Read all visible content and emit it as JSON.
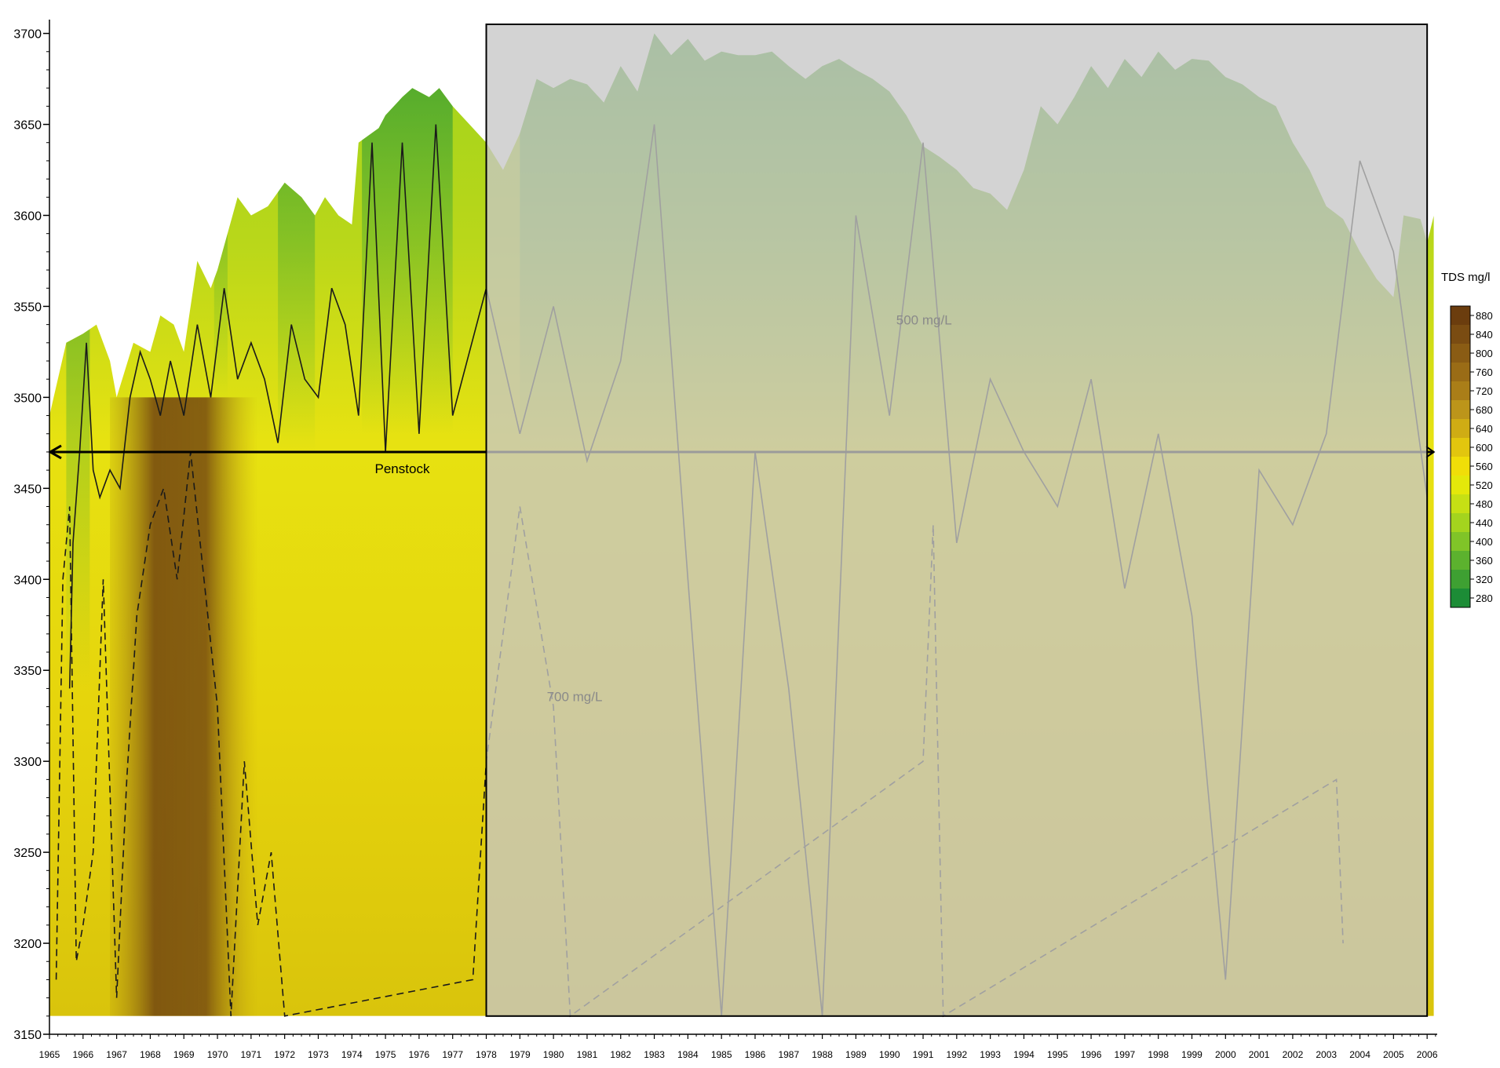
{
  "chart_data": {
    "type": "heatmap",
    "title": "",
    "xlabel": "",
    "ylabel": "",
    "xlim": [
      1965,
      2006.3
    ],
    "ylim": [
      3150,
      3705
    ],
    "x_ticks": [
      "1965",
      "1966",
      "1967",
      "1968",
      "1969",
      "1970",
      "1971",
      "1972",
      "1973",
      "1974",
      "1975",
      "1976",
      "1977",
      "1978",
      "1979",
      "1980",
      "1981",
      "1982",
      "1983",
      "1984",
      "1985",
      "1986",
      "1987",
      "1988",
      "1989",
      "1990",
      "1991",
      "1992",
      "1993",
      "1994",
      "1995",
      "1996",
      "1997",
      "1998",
      "1999",
      "2000",
      "2001",
      "2002",
      "2003",
      "2004",
      "2005",
      "2006"
    ],
    "y_ticks": [
      3150,
      3200,
      3250,
      3300,
      3350,
      3400,
      3450,
      3500,
      3550,
      3600,
      3650,
      3700
    ],
    "legend": {
      "title": "TDS mg/l",
      "placement": "right",
      "levels": [
        880,
        840,
        800,
        760,
        720,
        680,
        640,
        600,
        560,
        520,
        480,
        440,
        400,
        360,
        320,
        280
      ],
      "colors": [
        "#6b3d0e",
        "#7a4c12",
        "#8a5c14",
        "#9a6c16",
        "#aa7e18",
        "#bc951a",
        "#cfac14",
        "#e2c60e",
        "#f0de08",
        "#e4e80a",
        "#c6e014",
        "#a4d41e",
        "#80c428",
        "#5cb22e",
        "#3ea032",
        "#1c8c36"
      ]
    },
    "surface_top": [
      [
        1965,
        3490
      ],
      [
        1965.5,
        3530
      ],
      [
        1966,
        3535
      ],
      [
        1966.4,
        3540
      ],
      [
        1966.8,
        3520
      ],
      [
        1967,
        3500
      ],
      [
        1967.5,
        3530
      ],
      [
        1968,
        3525
      ],
      [
        1968.3,
        3545
      ],
      [
        1968.7,
        3540
      ],
      [
        1969,
        3525
      ],
      [
        1969.4,
        3575
      ],
      [
        1969.8,
        3560
      ],
      [
        1970,
        3570
      ],
      [
        1970.6,
        3610
      ],
      [
        1971,
        3600
      ],
      [
        1971.5,
        3605
      ],
      [
        1972,
        3618
      ],
      [
        1972.5,
        3610
      ],
      [
        1972.9,
        3600
      ],
      [
        1973.2,
        3610
      ],
      [
        1973.6,
        3600
      ],
      [
        1974,
        3595
      ],
      [
        1974.2,
        3640
      ],
      [
        1974.8,
        3648
      ],
      [
        1975,
        3655
      ],
      [
        1975.5,
        3665
      ],
      [
        1975.8,
        3670
      ],
      [
        1976.3,
        3665
      ],
      [
        1976.6,
        3670
      ],
      [
        1977,
        3660
      ],
      [
        1977.5,
        3650
      ],
      [
        1978,
        3640
      ],
      [
        1978.5,
        3625
      ],
      [
        1979,
        3645
      ],
      [
        1979.5,
        3675
      ],
      [
        1980,
        3670
      ],
      [
        1980.5,
        3675
      ],
      [
        1981,
        3672
      ],
      [
        1981.5,
        3662
      ],
      [
        1982,
        3682
      ],
      [
        1982.5,
        3668
      ],
      [
        1983,
        3700
      ],
      [
        1983.5,
        3688
      ],
      [
        1984,
        3697
      ],
      [
        1984.5,
        3685
      ],
      [
        1985,
        3690
      ],
      [
        1985.5,
        3688
      ],
      [
        1986,
        3688
      ],
      [
        1986.5,
        3690
      ],
      [
        1987,
        3682
      ],
      [
        1987.5,
        3675
      ],
      [
        1988,
        3682
      ],
      [
        1988.5,
        3686
      ],
      [
        1989,
        3680
      ],
      [
        1989.5,
        3675
      ],
      [
        1990,
        3668
      ],
      [
        1990.5,
        3655
      ],
      [
        1991,
        3638
      ],
      [
        1991.5,
        3632
      ],
      [
        1992,
        3625
      ],
      [
        1992.5,
        3615
      ],
      [
        1993,
        3612
      ],
      [
        1993.5,
        3603
      ],
      [
        1994,
        3625
      ],
      [
        1994.5,
        3660
      ],
      [
        1995,
        3650
      ],
      [
        1995.5,
        3665
      ],
      [
        1996,
        3682
      ],
      [
        1996.5,
        3670
      ],
      [
        1997,
        3686
      ],
      [
        1997.5,
        3676
      ],
      [
        1998,
        3690
      ],
      [
        1998.5,
        3680
      ],
      [
        1999,
        3686
      ],
      [
        1999.5,
        3685
      ],
      [
        2000,
        3676
      ],
      [
        2000.5,
        3672
      ],
      [
        2001,
        3665
      ],
      [
        2001.5,
        3660
      ],
      [
        2002,
        3640
      ],
      [
        2002.5,
        3625
      ],
      [
        2003,
        3605
      ],
      [
        2003.5,
        3598
      ],
      [
        2004,
        3580
      ],
      [
        2004.5,
        3565
      ],
      [
        2005,
        3555
      ],
      [
        2005.3,
        3600
      ],
      [
        2005.8,
        3598
      ],
      [
        2006,
        3585
      ],
      [
        2006.2,
        3600
      ]
    ],
    "penstock_elevation": 3470,
    "surface_bottom": 3160,
    "highlight_region": {
      "x": [
        1978,
        2006
      ],
      "y": [
        3160,
        3705
      ]
    },
    "annotations": [
      {
        "text": "Penstock",
        "x": 1975.5,
        "y": 3461
      },
      {
        "text": "500 mg/L",
        "x": 1990.2,
        "y": 3540
      },
      {
        "text": "700 mg/L",
        "x": 1979.8,
        "y": 3333
      }
    ],
    "contours": [
      {
        "level": "500 mg/L",
        "style": "solid",
        "points": [
          [
            1965.6,
            3340
          ],
          [
            1965.7,
            3420
          ],
          [
            1965.9,
            3470
          ],
          [
            1966.1,
            3530
          ],
          [
            1966.3,
            3460
          ],
          [
            1966.5,
            3445
          ],
          [
            1966.8,
            3460
          ],
          [
            1967.1,
            3450
          ],
          [
            1967.4,
            3500
          ],
          [
            1967.7,
            3525
          ],
          [
            1968,
            3510
          ],
          [
            1968.3,
            3490
          ],
          [
            1968.6,
            3520
          ],
          [
            1969,
            3490
          ],
          [
            1969.4,
            3540
          ],
          [
            1969.8,
            3500
          ],
          [
            1970.2,
            3560
          ],
          [
            1970.6,
            3510
          ],
          [
            1971,
            3530
          ],
          [
            1971.4,
            3510
          ],
          [
            1971.8,
            3475
          ],
          [
            1972.2,
            3540
          ],
          [
            1972.6,
            3510
          ],
          [
            1973,
            3500
          ],
          [
            1973.4,
            3560
          ],
          [
            1973.8,
            3540
          ],
          [
            1974.2,
            3490
          ],
          [
            1974.6,
            3640
          ],
          [
            1975,
            3470
          ],
          [
            1975.5,
            3640
          ],
          [
            1976,
            3480
          ],
          [
            1976.5,
            3650
          ],
          [
            1977,
            3490
          ],
          [
            1978,
            3560
          ],
          [
            1979,
            3480
          ],
          [
            1980,
            3550
          ],
          [
            1981,
            3465
          ],
          [
            1982,
            3520
          ],
          [
            1983,
            3650
          ],
          [
            1984,
            3400
          ],
          [
            1985,
            3160
          ],
          [
            1986,
            3470
          ],
          [
            1987,
            3340
          ],
          [
            1988,
            3160
          ],
          [
            1989,
            3600
          ],
          [
            1990,
            3490
          ],
          [
            1991,
            3640
          ],
          [
            1992,
            3420
          ],
          [
            1993,
            3510
          ],
          [
            1994,
            3470
          ],
          [
            1995,
            3440
          ],
          [
            1996,
            3510
          ],
          [
            1997,
            3395
          ],
          [
            1998,
            3480
          ],
          [
            1999,
            3380
          ],
          [
            2000,
            3180
          ],
          [
            2001,
            3460
          ],
          [
            2002,
            3430
          ],
          [
            2003,
            3480
          ],
          [
            2004,
            3630
          ],
          [
            2005,
            3580
          ],
          [
            2006,
            3445
          ]
        ]
      },
      {
        "level": "700 mg/L",
        "style": "dashed",
        "points": [
          [
            1965.2,
            3180
          ],
          [
            1965.4,
            3400
          ],
          [
            1965.6,
            3440
          ],
          [
            1965.8,
            3190
          ],
          [
            1966,
            3210
          ],
          [
            1966.3,
            3250
          ],
          [
            1966.6,
            3400
          ],
          [
            1967,
            3170
          ],
          [
            1967.3,
            3290
          ],
          [
            1967.6,
            3380
          ],
          [
            1968,
            3430
          ],
          [
            1968.4,
            3450
          ],
          [
            1968.8,
            3400
          ],
          [
            1969.2,
            3470
          ],
          [
            1969.6,
            3400
          ],
          [
            1970,
            3330
          ],
          [
            1970.4,
            3160
          ],
          [
            1970.8,
            3300
          ],
          [
            1971.2,
            3210
          ],
          [
            1971.6,
            3250
          ],
          [
            1972,
            3160
          ],
          [
            1977.6,
            3180
          ],
          [
            1978,
            3300
          ],
          [
            1979,
            3440
          ],
          [
            1980,
            3330
          ],
          [
            1980.5,
            3160
          ],
          [
            1991,
            3300
          ],
          [
            1991.3,
            3430
          ],
          [
            1991.6,
            3160
          ],
          [
            2003.3,
            3290
          ],
          [
            2003.5,
            3200
          ]
        ]
      }
    ]
  }
}
